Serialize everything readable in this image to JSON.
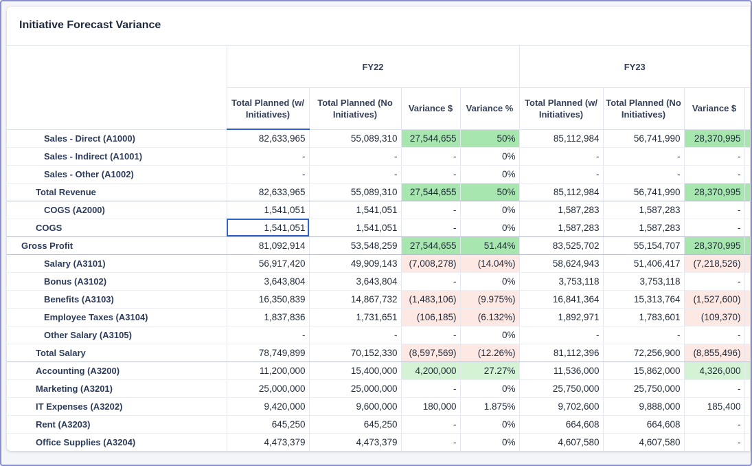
{
  "title": "Initiative Forecast Variance",
  "years": [
    "FY22",
    "FY23"
  ],
  "columns": [
    "Total Planned (w/ Initiatives)",
    "Total Planned (No Initiatives)",
    "Variance $",
    "Variance %",
    "Total Planned (w/ Initiatives)",
    "Total Planned (No Initiatives)",
    "Variance $"
  ],
  "colors": {
    "positive": "#a8e6b0",
    "positive_light": "#d4f3d5",
    "negative": "#fde8e4",
    "selection": "#2f62c4"
  },
  "rows": [
    {
      "label": "Sales - Direct (A1000)",
      "values": [
        "82,633,965",
        "55,089,310",
        "27,544,655",
        "50%",
        "85,112,984",
        "56,741,990",
        "28,370,995"
      ]
    },
    {
      "label": "Sales - Indirect (A1001)",
      "values": [
        "-",
        "-",
        "-",
        "0%",
        "-",
        "-",
        "-"
      ]
    },
    {
      "label": "Sales - Other (A1002)",
      "values": [
        "-",
        "-",
        "-",
        "0%",
        "-",
        "-",
        "-"
      ]
    },
    {
      "label": "Total Revenue",
      "values": [
        "82,633,965",
        "55,089,310",
        "27,544,655",
        "50%",
        "85,112,984",
        "56,741,990",
        "28,370,995"
      ]
    },
    {
      "label": "COGS (A2000)",
      "values": [
        "1,541,051",
        "1,541,051",
        "-",
        "0%",
        "1,587,283",
        "1,587,283",
        "-"
      ]
    },
    {
      "label": "COGS",
      "values": [
        "1,541,051",
        "1,541,051",
        "-",
        "0%",
        "1,587,283",
        "1,587,283",
        "-"
      ]
    },
    {
      "label": "Gross Profit",
      "values": [
        "81,092,914",
        "53,548,259",
        "27,544,655",
        "51.44%",
        "83,525,702",
        "55,154,707",
        "28,370,995"
      ]
    },
    {
      "label": "Salary (A3101)",
      "values": [
        "56,917,420",
        "49,909,143",
        "(7,008,278)",
        "(14.04%)",
        "58,624,943",
        "51,406,417",
        "(7,218,526)"
      ]
    },
    {
      "label": "Bonus (A3102)",
      "values": [
        "3,643,804",
        "3,643,804",
        "-",
        "0%",
        "3,753,118",
        "3,753,118",
        "-"
      ]
    },
    {
      "label": "Benefits (A3103)",
      "values": [
        "16,350,839",
        "14,867,732",
        "(1,483,106)",
        "(9.975%)",
        "16,841,364",
        "15,313,764",
        "(1,527,600)"
      ]
    },
    {
      "label": "Employee Taxes (A3104)",
      "values": [
        "1,837,836",
        "1,731,651",
        "(106,185)",
        "(6.132%)",
        "1,892,971",
        "1,783,601",
        "(109,370)"
      ]
    },
    {
      "label": "Other Salary (A3105)",
      "values": [
        "-",
        "-",
        "-",
        "0%",
        "-",
        "-",
        "-"
      ]
    },
    {
      "label": "Total Salary",
      "values": [
        "78,749,899",
        "70,152,330",
        "(8,597,569)",
        "(12.26%)",
        "81,112,396",
        "72,256,900",
        "(8,855,496)"
      ]
    },
    {
      "label": "Accounting (A3200)",
      "values": [
        "11,200,000",
        "15,400,000",
        "4,200,000",
        "27.27%",
        "11,536,000",
        "15,862,000",
        "4,326,000"
      ]
    },
    {
      "label": "Marketing (A3201)",
      "values": [
        "25,000,000",
        "25,000,000",
        "-",
        "0%",
        "25,750,000",
        "25,750,000",
        "-"
      ]
    },
    {
      "label": "IT Expenses (A3202)",
      "values": [
        "9,420,000",
        "9,600,000",
        "180,000",
        "1.875%",
        "9,702,600",
        "9,888,000",
        "185,400"
      ]
    },
    {
      "label": "Rent (A3203)",
      "values": [
        "645,250",
        "645,250",
        "-",
        "0%",
        "664,608",
        "664,608",
        "-"
      ]
    },
    {
      "label": "Office Supplies (A3204)",
      "values": [
        "4,473,379",
        "4,473,379",
        "-",
        "0%",
        "4,607,580",
        "4,607,580",
        "-"
      ]
    }
  ]
}
